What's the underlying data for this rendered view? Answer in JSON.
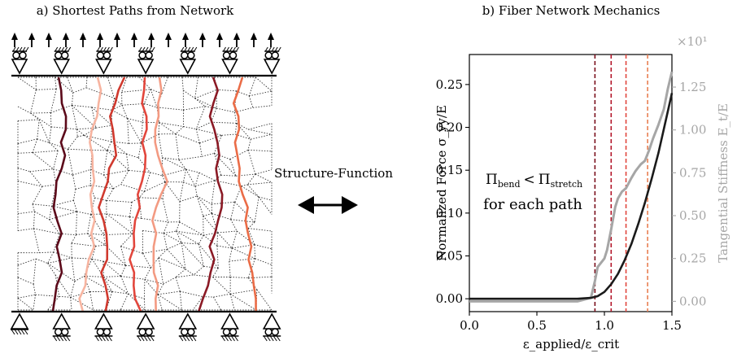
{
  "panel_a": {
    "title": "a)  Shortest Paths from Network"
  },
  "middle": {
    "label": "Structure-Function"
  },
  "panel_b": {
    "title": "b) Fiber Network Mechanics",
    "annotation_line1": "Π_bend < Π_stretch",
    "annotation_line2": "for each path",
    "annotation_bend_sub": "bend",
    "annotation_stretch_sub": "stretch",
    "annotation_pi": "Π",
    "annotation_lt": "<"
  },
  "chart_data": {
    "type": "line",
    "title": "b) Fiber Network Mechanics",
    "xlabel": "ε_applied/ε_crit",
    "ylabel": "Normalized Force σ_yy/E",
    "ylabel2": "Tangential Stiffness E_t/E",
    "xlim": [
      0,
      1.5
    ],
    "ylim": [
      -0.015,
      0.285
    ],
    "ylim2": [
      -0.06,
      1.44
    ],
    "y2_multiplier": "×10¹",
    "xticks": [
      "0.0",
      "0.5",
      "1.0",
      "1.5"
    ],
    "yticks": [
      "0.00",
      "0.05",
      "0.10",
      "0.15",
      "0.20",
      "0.25"
    ],
    "y2ticks": [
      "0.00",
      "0.25",
      "0.50",
      "0.75",
      "1.00",
      "1.25"
    ],
    "series": [
      {
        "axis": "left",
        "color": "#1a1a1a",
        "x": [
          0,
          0.2,
          0.4,
          0.6,
          0.8,
          0.9,
          0.95,
          1.0,
          1.05,
          1.1,
          1.15,
          1.2,
          1.25,
          1.3,
          1.35,
          1.4,
          1.45,
          1.5
        ],
        "y": [
          0,
          0,
          0,
          0,
          0,
          0.001,
          0.003,
          0.008,
          0.017,
          0.029,
          0.045,
          0.064,
          0.087,
          0.112,
          0.14,
          0.17,
          0.205,
          0.24
        ]
      },
      {
        "axis": "right",
        "color": "#a6a6a6",
        "x": [
          0,
          0.2,
          0.4,
          0.6,
          0.8,
          0.9,
          0.93,
          0.95,
          1.0,
          1.02,
          1.05,
          1.08,
          1.1,
          1.13,
          1.16,
          1.2,
          1.23,
          1.25,
          1.27,
          1.3,
          1.33,
          1.36,
          1.4,
          1.44,
          1.47,
          1.5
        ],
        "y": [
          0,
          0,
          0,
          0,
          0,
          0.02,
          0.12,
          0.2,
          0.25,
          0.3,
          0.42,
          0.55,
          0.6,
          0.64,
          0.66,
          0.72,
          0.76,
          0.78,
          0.8,
          0.82,
          0.88,
          0.95,
          1.03,
          1.12,
          1.24,
          1.34
        ]
      }
    ],
    "vlines": [
      {
        "x": 0.93,
        "color": "#7a0f1c"
      },
      {
        "x": 1.05,
        "color": "#b3162a"
      },
      {
        "x": 1.16,
        "color": "#e0463d"
      },
      {
        "x": 1.32,
        "color": "#e87f52"
      }
    ],
    "grid": false
  },
  "colors": {
    "paths": [
      "#5c0a1a",
      "#f7b4a0",
      "#d0392e",
      "#e2463c",
      "#f39a82",
      "#8b1a25",
      "#ea6c47"
    ],
    "network": "#333333",
    "stiffness": "#a6a6a6"
  }
}
